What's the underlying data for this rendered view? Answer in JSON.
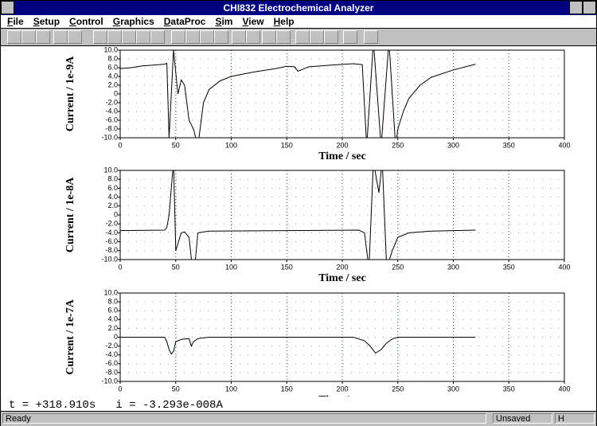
{
  "window_title": "CHI832 Electrochemical Analyzer",
  "menu": [
    "File",
    "Setup",
    "Control",
    "Graphics",
    "DataProc",
    "Sim",
    "View",
    "Help"
  ],
  "readout": "t = +318.910s   i = -3.293e-008A",
  "status_bar": {
    "state": "Ready",
    "file": "Unsaved",
    "mode": "H"
  },
  "chart_data": [
    {
      "type": "line",
      "x_label": "Time / sec",
      "y_label": "Current / 1e-9A",
      "xlim": [
        0,
        400
      ],
      "xticks": [
        0,
        50,
        100,
        150,
        200,
        250,
        300,
        350,
        400
      ],
      "ylim": [
        -10,
        10
      ],
      "yticks": [
        {
          "value": 10,
          "label": "10.0"
        },
        {
          "value": 8,
          "label": "8.0"
        },
        {
          "value": 6,
          "label": "6.0"
        },
        {
          "value": 4,
          "label": "4.0"
        },
        {
          "value": 2,
          "label": "2.0"
        },
        0,
        {
          "value": -2,
          "label": "-2.0"
        },
        {
          "value": -4,
          "label": "-4.0"
        },
        {
          "value": -6,
          "label": "-6.0"
        },
        {
          "value": -8,
          "label": "-8.0"
        },
        {
          "value": -10,
          "label": "-10.0"
        }
      ],
      "grid": true,
      "series": [
        {
          "color": "#000000",
          "x": [
            0,
            10,
            20,
            30,
            40,
            42,
            44,
            48,
            52,
            55,
            58,
            62,
            66,
            70,
            72,
            75,
            80,
            90,
            100,
            120,
            140,
            150,
            157,
            160,
            163,
            170,
            190,
            210,
            218,
            222,
            228,
            235,
            242,
            248,
            250,
            255,
            260,
            270,
            280,
            300,
            320
          ],
          "values": [
            5.8,
            6.0,
            6.4,
            6.6,
            6.8,
            7.0,
            -10,
            10,
            0,
            3.2,
            2,
            -6,
            -8,
            -12,
            -8,
            -2,
            1,
            3,
            4,
            5,
            5.8,
            6.3,
            6.2,
            5.2,
            5.5,
            6.2,
            6.6,
            6.9,
            6.7,
            -12,
            12,
            -12,
            12,
            -12,
            -8,
            -4,
            -1,
            2,
            3.8,
            5.5,
            6.8
          ]
        }
      ]
    },
    {
      "type": "line",
      "x_label": "Time / sec",
      "y_label": "Current / 1e-8A",
      "xlim": [
        0,
        400
      ],
      "xticks": [
        0,
        50,
        100,
        150,
        200,
        250,
        300,
        350,
        400
      ],
      "ylim": [
        -10,
        10
      ],
      "yticks": [
        {
          "value": 10,
          "label": "10.0"
        },
        {
          "value": 8,
          "label": "8.0"
        },
        {
          "value": 6,
          "label": "6.0"
        },
        {
          "value": 4,
          "label": "4.0"
        },
        {
          "value": 2,
          "label": "2.0"
        },
        0,
        {
          "value": -2,
          "label": "-2.0"
        },
        {
          "value": -4,
          "label": "-4.0"
        },
        {
          "value": -6,
          "label": "-6.0"
        },
        {
          "value": -8,
          "label": "-8.0"
        },
        {
          "value": -10,
          "label": "-10.0"
        }
      ],
      "grid": true,
      "series": [
        {
          "color": "#000000",
          "x": [
            0,
            40,
            42,
            44,
            48,
            50,
            55,
            58,
            62,
            65,
            67,
            70,
            80,
            150,
            215,
            220,
            224,
            228,
            233,
            236,
            240,
            245,
            250,
            260,
            280,
            320
          ],
          "values": [
            -3.5,
            -3.4,
            -2.8,
            0,
            12,
            -8,
            -4,
            -3.8,
            -5,
            -12,
            -12,
            -4,
            -3.6,
            -3.5,
            -3.4,
            -4,
            -12,
            12,
            5,
            12,
            -12,
            -8,
            -5,
            -4,
            -3.6,
            -3.4
          ]
        }
      ]
    },
    {
      "type": "line",
      "x_label": "Time / sec",
      "y_label": "Current / 1e-7A",
      "xlim": [
        0,
        400
      ],
      "xticks": [
        0,
        50,
        100,
        150,
        200,
        250,
        300,
        350,
        400
      ],
      "ylim": [
        -10,
        10
      ],
      "yticks": [
        {
          "value": 10,
          "label": "10.0"
        },
        {
          "value": 8,
          "label": "8.0"
        },
        {
          "value": 6,
          "label": "6.0"
        },
        {
          "value": 4,
          "label": "4.0"
        },
        {
          "value": 2,
          "label": "2.0"
        },
        0,
        {
          "value": -2,
          "label": "-2.0"
        },
        {
          "value": -4,
          "label": "-4.0"
        },
        {
          "value": -6,
          "label": "-6.0"
        },
        {
          "value": -8,
          "label": "-8.0"
        },
        {
          "value": -10,
          "label": "-10.0"
        }
      ],
      "grid": true,
      "series": [
        {
          "color": "#000000",
          "x": [
            0,
            40,
            42,
            44,
            46,
            48,
            50,
            55,
            62,
            64,
            66,
            70,
            80,
            210,
            220,
            225,
            230,
            235,
            240,
            245,
            250,
            320
          ],
          "values": [
            0,
            0,
            -1,
            -2.8,
            -3.8,
            -3.2,
            -1,
            -0.5,
            -0.3,
            -2,
            -1,
            -0.3,
            0,
            0,
            -0.8,
            -2,
            -3.6,
            -2.8,
            -1.3,
            -0.4,
            0,
            0
          ]
        }
      ]
    }
  ]
}
